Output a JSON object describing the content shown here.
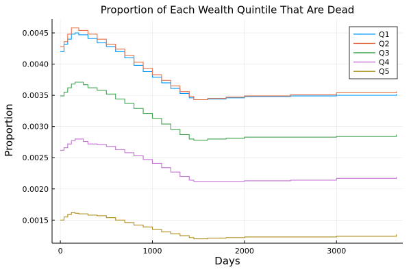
{
  "chart_data": {
    "type": "line",
    "title": "Proportion of Each Wealth Quintile That Are Dead",
    "xlabel": "Days",
    "ylabel": "Proportion",
    "xlim": [
      -90,
      3720
    ],
    "ylim": [
      0.00113,
      0.00472
    ],
    "x_ticks": [
      0,
      1000,
      2000,
      3000
    ],
    "x_tick_labels": [
      "0",
      "1000",
      "2000",
      "3000"
    ],
    "y_ticks": [
      0.0015,
      0.002,
      0.0025,
      0.003,
      0.0035,
      0.004,
      0.0045
    ],
    "y_tick_labels": [
      "0.0015",
      "0.0020",
      "0.0025",
      "0.0030",
      "0.0035",
      "0.0040",
      "0.0045"
    ],
    "grid": true,
    "legend_position": "top-right",
    "series": [
      {
        "name": "Q1",
        "color": "#009AFA",
        "x": [
          0,
          40,
          80,
          120,
          160,
          200,
          300,
          400,
          500,
          600,
          700,
          800,
          900,
          1000,
          1100,
          1200,
          1300,
          1400,
          1450,
          1600,
          1800,
          2000,
          2500,
          3000,
          3650
        ],
        "values": [
          0.0042,
          0.00432,
          0.0044,
          0.00448,
          0.0045,
          0.00447,
          0.00441,
          0.00434,
          0.00428,
          0.0042,
          0.0041,
          0.00398,
          0.00388,
          0.00379,
          0.0037,
          0.00361,
          0.00353,
          0.00346,
          0.00343,
          0.00344,
          0.00346,
          0.00348,
          0.00349,
          0.0035,
          0.00352
        ]
      },
      {
        "name": "Q2",
        "color": "#E36F47",
        "x": [
          0,
          40,
          80,
          120,
          160,
          200,
          300,
          400,
          500,
          600,
          700,
          800,
          900,
          1000,
          1100,
          1200,
          1300,
          1400,
          1450,
          1600,
          1800,
          2000,
          2500,
          3000,
          3650
        ],
        "values": [
          0.00428,
          0.00436,
          0.00448,
          0.00458,
          0.00458,
          0.00454,
          0.00448,
          0.0044,
          0.00432,
          0.00424,
          0.00414,
          0.00403,
          0.00393,
          0.00383,
          0.00374,
          0.00365,
          0.00356,
          0.00348,
          0.00343,
          0.00345,
          0.00347,
          0.00349,
          0.00351,
          0.00354,
          0.00356
        ]
      },
      {
        "name": "Q3",
        "color": "#3EA44E",
        "x": [
          0,
          40,
          80,
          120,
          160,
          200,
          250,
          300,
          400,
          500,
          600,
          700,
          800,
          900,
          1000,
          1100,
          1200,
          1300,
          1400,
          1450,
          1600,
          1800,
          2000,
          2500,
          3000,
          3650
        ],
        "values": [
          0.00349,
          0.00355,
          0.00362,
          0.00368,
          0.00371,
          0.00371,
          0.00367,
          0.00362,
          0.00358,
          0.00352,
          0.00344,
          0.00337,
          0.00329,
          0.00321,
          0.00313,
          0.00304,
          0.00295,
          0.00287,
          0.0028,
          0.00278,
          0.0028,
          0.00281,
          0.00283,
          0.00283,
          0.00284,
          0.00287
        ]
      },
      {
        "name": "Q4",
        "color": "#C271D2",
        "x": [
          0,
          40,
          80,
          120,
          160,
          200,
          250,
          300,
          400,
          500,
          600,
          700,
          800,
          900,
          1000,
          1100,
          1200,
          1300,
          1400,
          1450,
          1600,
          1800,
          2000,
          2500,
          3000,
          3650
        ],
        "values": [
          0.00262,
          0.00266,
          0.00272,
          0.00277,
          0.0028,
          0.0028,
          0.00276,
          0.00272,
          0.00271,
          0.00268,
          0.00263,
          0.00258,
          0.00253,
          0.00247,
          0.00241,
          0.00234,
          0.00227,
          0.0022,
          0.00214,
          0.00212,
          0.00212,
          0.00212,
          0.00213,
          0.00214,
          0.00217,
          0.00219
        ]
      },
      {
        "name": "Q5",
        "color": "#AC8D18",
        "x": [
          0,
          40,
          80,
          120,
          160,
          200,
          300,
          400,
          500,
          600,
          700,
          800,
          900,
          1000,
          1100,
          1200,
          1300,
          1400,
          1450,
          1600,
          1800,
          2000,
          2500,
          3000,
          3650
        ],
        "values": [
          0.0015,
          0.00155,
          0.00159,
          0.00162,
          0.00161,
          0.0016,
          0.00158,
          0.00157,
          0.00154,
          0.0015,
          0.00146,
          0.00142,
          0.00139,
          0.00135,
          0.00131,
          0.00128,
          0.00125,
          0.00122,
          0.0012,
          0.00121,
          0.00122,
          0.00123,
          0.00123,
          0.00124,
          0.00127
        ]
      }
    ]
  }
}
